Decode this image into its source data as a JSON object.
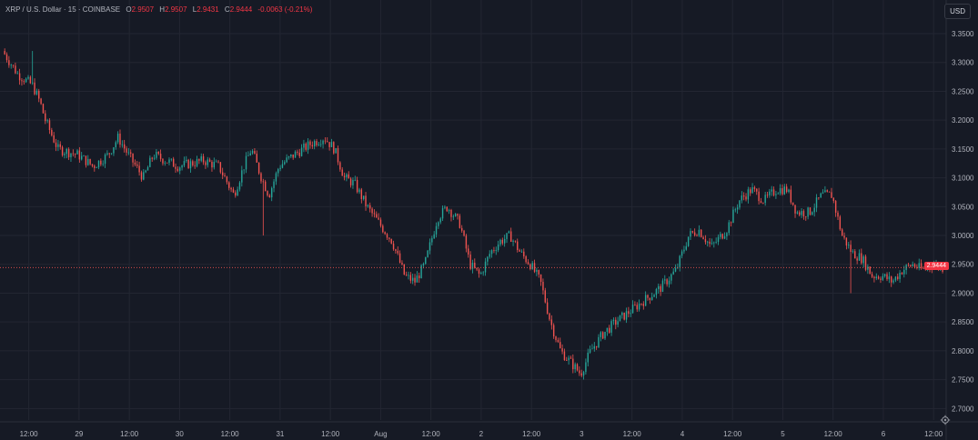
{
  "legend": {
    "symbol": "XRP / U.S. Dollar · 15 · COINBASE",
    "open_label": "O",
    "open": "2.9507",
    "high_label": "H",
    "high": "2.9507",
    "low_label": "L",
    "low": "2.9431",
    "close_label": "C",
    "close": "2.9444",
    "change": "-0.0063 (-0.21%)"
  },
  "currency": "USD",
  "last_price": "2.9444",
  "colors": {
    "background": "#161a25",
    "grid": "#232632",
    "up": "#26a69a",
    "down": "#ef5350",
    "text": "#b2b5be"
  },
  "icons": [
    "settings-icon"
  ],
  "chart_data": {
    "type": "candlestick",
    "title": "",
    "xlabel": "",
    "ylabel": "",
    "ylim": [
      2.68,
      3.38
    ],
    "yticks": [
      "3.3500",
      "3.3000",
      "3.2500",
      "3.2000",
      "3.1500",
      "3.1000",
      "3.0500",
      "3.0000",
      "2.9500",
      "2.9000",
      "2.8500",
      "2.8000",
      "2.7500",
      "2.7000"
    ],
    "x_tick_labels": [
      "12:00",
      "29",
      "12:00",
      "30",
      "12:00",
      "31",
      "12:00",
      "Aug",
      "12:00",
      "2",
      "12:00",
      "3",
      "12:00",
      "4",
      "12:00",
      "5",
      "12:00",
      "6",
      "12:00"
    ],
    "x_tick_index": [
      1,
      3,
      5,
      7,
      9,
      11,
      13,
      15,
      17,
      19,
      21,
      23,
      25,
      27,
      29,
      31,
      33,
      35,
      37
    ],
    "x_range": [
      0,
      37.5
    ],
    "price_path": [
      [
        0,
        3.32
      ],
      [
        0.6,
        3.28
      ],
      [
        1.2,
        3.26
      ],
      [
        1.5,
        3.23
      ],
      [
        1.7,
        3.2
      ],
      [
        2.2,
        3.15
      ],
      [
        3,
        3.14
      ],
      [
        3.6,
        3.12
      ],
      [
        4.2,
        3.14
      ],
      [
        4.6,
        3.17
      ],
      [
        5,
        3.14
      ],
      [
        5.6,
        3.1
      ],
      [
        6,
        3.14
      ],
      [
        7,
        3.12
      ],
      [
        8,
        3.13
      ],
      [
        8.6,
        3.12
      ],
      [
        9.2,
        3.07
      ],
      [
        9.6,
        3.12
      ],
      [
        9.9,
        3.15
      ],
      [
        10.3,
        3.1
      ],
      [
        10.6,
        3.07
      ],
      [
        11,
        3.12
      ],
      [
        11.6,
        3.14
      ],
      [
        12.3,
        3.16
      ],
      [
        12.8,
        3.17
      ],
      [
        13.2,
        3.15
      ],
      [
        13.6,
        3.1
      ],
      [
        14,
        3.09
      ],
      [
        14.5,
        3.05
      ],
      [
        15,
        3.02
      ],
      [
        15.5,
        2.99
      ],
      [
        16,
        2.93
      ],
      [
        16.4,
        2.92
      ],
      [
        16.8,
        2.95
      ],
      [
        17.3,
        3.03
      ],
      [
        17.7,
        3.05
      ],
      [
        18.2,
        3.02
      ],
      [
        18.6,
        2.95
      ],
      [
        19,
        2.93
      ],
      [
        19.4,
        2.97
      ],
      [
        19.8,
        2.99
      ],
      [
        20.2,
        3.0
      ],
      [
        20.6,
        2.97
      ],
      [
        21,
        2.95
      ],
      [
        21.4,
        2.92
      ],
      [
        21.8,
        2.85
      ],
      [
        22.2,
        2.8
      ],
      [
        22.6,
        2.78
      ],
      [
        23,
        2.76
      ],
      [
        23.4,
        2.8
      ],
      [
        23.9,
        2.83
      ],
      [
        24.4,
        2.85
      ],
      [
        25,
        2.87
      ],
      [
        25.6,
        2.89
      ],
      [
        26.2,
        2.91
      ],
      [
        26.8,
        2.94
      ],
      [
        27.3,
        3.0
      ],
      [
        27.7,
        3.01
      ],
      [
        28.2,
        2.98
      ],
      [
        28.8,
        3.01
      ],
      [
        29.3,
        3.06
      ],
      [
        29.8,
        3.08
      ],
      [
        30.3,
        3.06
      ],
      [
        30.8,
        3.08
      ],
      [
        31.2,
        3.08
      ],
      [
        31.6,
        3.04
      ],
      [
        32.1,
        3.04
      ],
      [
        32.6,
        3.07
      ],
      [
        33,
        3.07
      ],
      [
        33.4,
        3.0
      ],
      [
        33.8,
        2.97
      ],
      [
        34.2,
        2.96
      ],
      [
        34.6,
        2.93
      ],
      [
        35,
        2.93
      ],
      [
        35.4,
        2.92
      ],
      [
        35.8,
        2.94
      ],
      [
        36.2,
        2.95
      ],
      [
        36.6,
        2.94
      ],
      [
        37,
        2.95
      ],
      [
        37.4,
        2.9444
      ]
    ],
    "wick_spikes": [
      {
        "x": 1.1,
        "high": 3.32
      },
      {
        "x": 10.3,
        "low": 3.0
      },
      {
        "x": 33.7,
        "low": 2.9
      }
    ],
    "candle_count": 440,
    "seed": 7
  }
}
